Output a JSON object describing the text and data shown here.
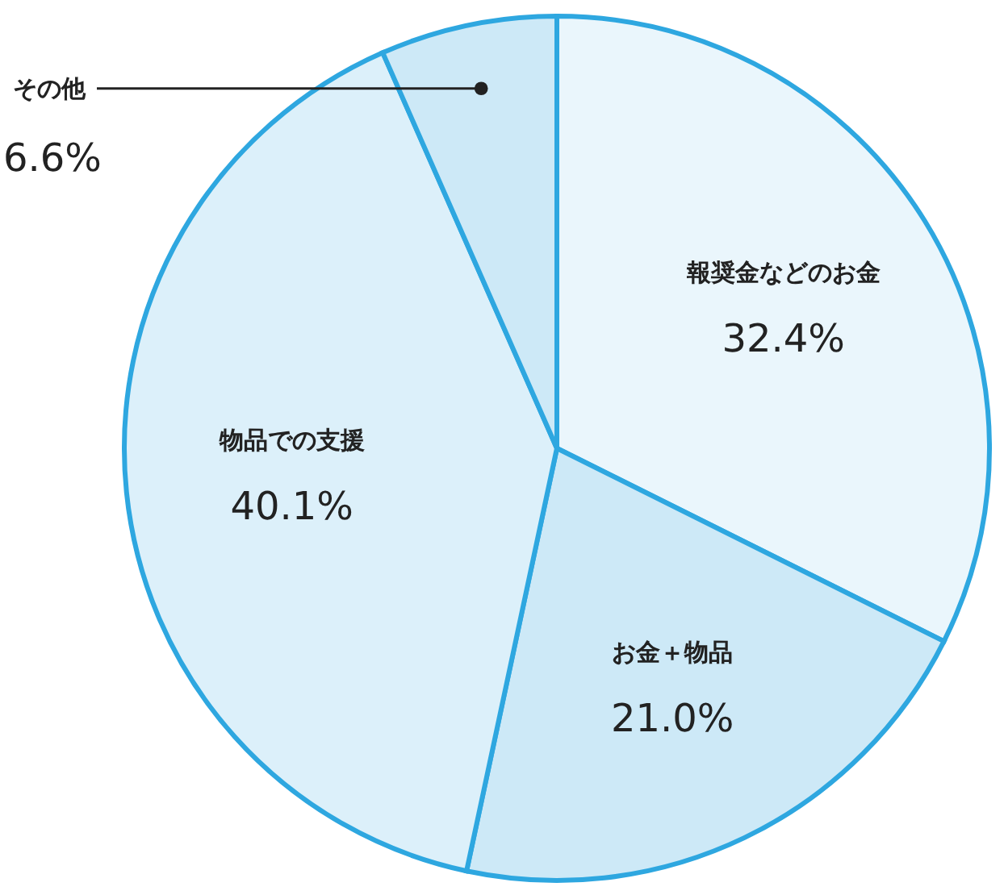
{
  "chart_data": {
    "type": "pie",
    "categories": [
      "報奨金などのお金",
      "お金＋物品",
      "物品での支援",
      "その他"
    ],
    "values": [
      32.4,
      21.0,
      40.1,
      6.6
    ],
    "value_labels": [
      "32.4%",
      "21.0%",
      "40.1%",
      "6.6%"
    ],
    "colors": [
      "#eaf6fc",
      "#cde9f7",
      "#dcf0fa",
      "#cde9f7"
    ]
  }
}
